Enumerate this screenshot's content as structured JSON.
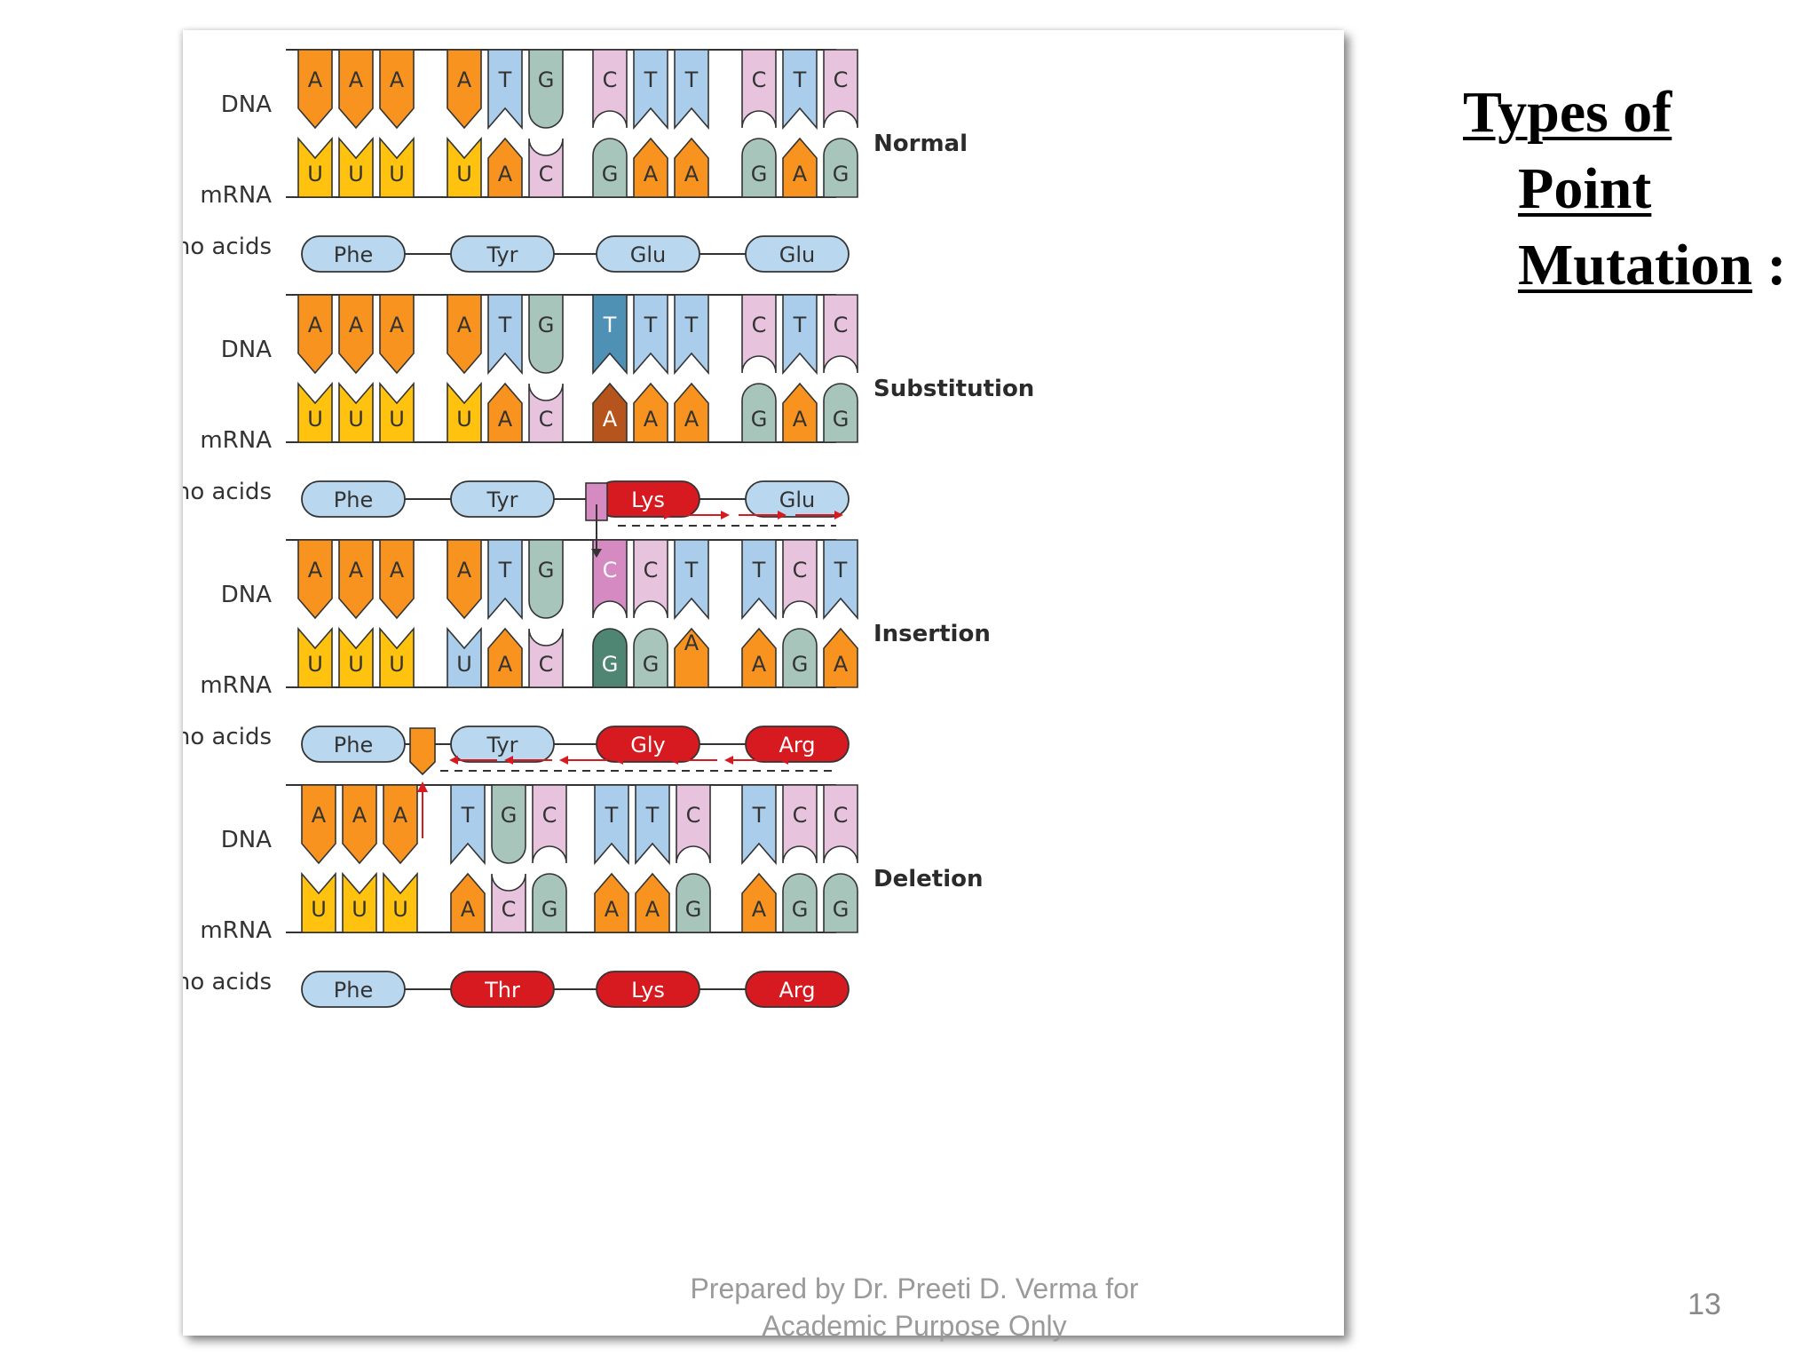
{
  "slide": {
    "title_line1": "Types of",
    "title_line2": "Point",
    "title_line3": "Mutation",
    "title_colon": " :",
    "footer_line1": "Prepared by Dr. Preeti D. Verma for",
    "footer_line2": "Academic Purpose Only",
    "page_number": "13"
  },
  "labels": {
    "dna": "DNA",
    "mrna": "mRNA",
    "amino": "Amino acids"
  },
  "colors": {
    "A": "#f7931e",
    "T": "#a9cdea",
    "G": "#a7c5bb",
    "C": "#e8c3dd",
    "U": "#ffc20e",
    "mutant_T": "#4f90b5",
    "mutant_A": "#b5541c",
    "mutant_G": "#4e8673",
    "inserted_C": "#d58ac2",
    "pill_normal": "#b9d8ef",
    "pill_mutant": "#d71920",
    "arrow": "#d71920"
  },
  "panels": [
    {
      "label": "Normal",
      "dna": [
        "A",
        "A",
        "A",
        "A",
        "T",
        "G",
        "C",
        "T",
        "T",
        "C",
        "T",
        "C"
      ],
      "mrna": [
        "U",
        "U",
        "U",
        "U",
        "A",
        "C",
        "G",
        "A",
        "A",
        "G",
        "A",
        "G"
      ],
      "amino": [
        {
          "name": "Phe",
          "mutant": false
        },
        {
          "name": "Tyr",
          "mutant": false
        },
        {
          "name": "Glu",
          "mutant": false
        },
        {
          "name": "Glu",
          "mutant": false
        }
      ]
    },
    {
      "label": "Substitution",
      "dna": [
        "A",
        "A",
        "A",
        "A",
        "T",
        "G",
        "T",
        "T",
        "T",
        "C",
        "T",
        "C"
      ],
      "mrna": [
        "U",
        "U",
        "U",
        "U",
        "A",
        "C",
        "A",
        "A",
        "A",
        "G",
        "A",
        "G"
      ],
      "amino": [
        {
          "name": "Phe",
          "mutant": false
        },
        {
          "name": "Tyr",
          "mutant": false
        },
        {
          "name": "Lys",
          "mutant": true
        },
        {
          "name": "Glu",
          "mutant": false
        }
      ]
    },
    {
      "label": "Insertion",
      "dna": [
        "A",
        "A",
        "A",
        "A",
        "T",
        "G",
        "C",
        "C",
        "T",
        "T",
        "C",
        "T"
      ],
      "mrna": [
        "U",
        "U",
        "U",
        "U",
        "A",
        "C",
        "G",
        "G",
        "A",
        "A",
        "G",
        "A"
      ],
      "amino": [
        {
          "name": "Phe",
          "mutant": false
        },
        {
          "name": "Tyr",
          "mutant": false
        },
        {
          "name": "Gly",
          "mutant": true
        },
        {
          "name": "Arg",
          "mutant": true
        }
      ]
    },
    {
      "label": "Deletion",
      "dna": [
        "A",
        "A",
        "A",
        "T",
        "G",
        "C",
        "T",
        "T",
        "C",
        "T",
        "C",
        "C"
      ],
      "mrna": [
        "U",
        "U",
        "U",
        "A",
        "C",
        "G",
        "A",
        "A",
        "G",
        "A",
        "G",
        "G"
      ],
      "amino": [
        {
          "name": "Phe",
          "mutant": false
        },
        {
          "name": "Thr",
          "mutant": true
        },
        {
          "name": "Lys",
          "mutant": true
        },
        {
          "name": "Arg",
          "mutant": true
        }
      ]
    }
  ]
}
